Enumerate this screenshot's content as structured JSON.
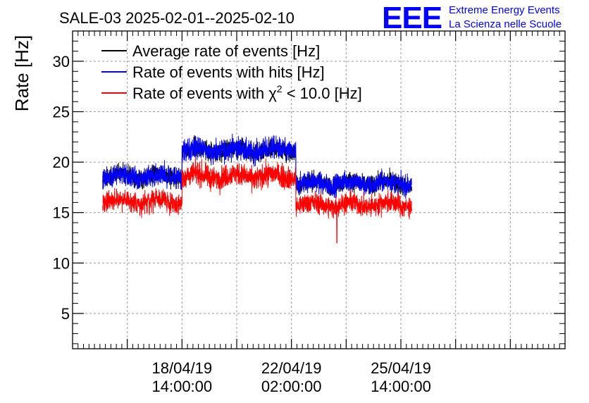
{
  "chart_data": {
    "type": "line",
    "title": "SALE-03 2025-02-01--2025-02-10",
    "ylabel": "Rate [Hz]",
    "xlabel": "",
    "ylim": [
      1.5,
      33
    ],
    "yticks": [
      5,
      10,
      15,
      20,
      25,
      30
    ],
    "xlim": [
      0,
      9
    ],
    "xticks": [
      {
        "x": 2.0,
        "date": "18/04/19",
        "time": "14:00:00"
      },
      {
        "x": 4.0,
        "date": "22/04/19",
        "time": "02:00:00"
      },
      {
        "x": 6.0,
        "date": "25/04/19",
        "time": "14:00:00"
      }
    ],
    "grid": true,
    "legend_position": "top-left",
    "x_range_data": [
      0.55,
      6.2
    ],
    "series": [
      {
        "name": "Average rate of events [Hz]",
        "color": "#000000",
        "segments": [
          {
            "x_start": 0.55,
            "x_end": 2.0,
            "mean": 18.6,
            "noise": 1.0
          },
          {
            "x_start": 2.0,
            "x_end": 4.08,
            "mean": 21.2,
            "noise": 1.0
          },
          {
            "x_start": 4.08,
            "x_end": 6.2,
            "mean": 17.9,
            "noise": 1.0
          }
        ]
      },
      {
        "name": "Rate of events with hits [Hz]",
        "color": "#0000ff",
        "segments": [
          {
            "x_start": 0.55,
            "x_end": 2.0,
            "mean": 18.6,
            "noise": 1.1
          },
          {
            "x_start": 2.0,
            "x_end": 4.08,
            "mean": 21.2,
            "noise": 1.2
          },
          {
            "x_start": 4.08,
            "x_end": 6.2,
            "mean": 17.9,
            "noise": 1.1
          }
        ]
      },
      {
        "name": "Rate of events with χ2 < 10.0 [Hz]",
        "color": "#ff0000",
        "segments": [
          {
            "x_start": 0.55,
            "x_end": 2.0,
            "mean": 16.1,
            "noise": 1.1
          },
          {
            "x_start": 2.0,
            "x_end": 4.08,
            "mean": 18.6,
            "noise": 1.2
          },
          {
            "x_start": 4.08,
            "x_end": 6.2,
            "mean": 15.8,
            "noise": 1.1
          }
        ],
        "dips": [
          {
            "x": 4.83,
            "value": 12.0
          }
        ]
      }
    ],
    "legend": {
      "entries": [
        {
          "label": "Average rate of events [Hz]",
          "color": "#000000"
        },
        {
          "label": "Rate of events with hits [Hz]",
          "color": "#0000ff"
        },
        {
          "label_prefix": "Rate of events with ",
          "chi": "χ",
          "sup": "2",
          "label_suffix": " < 10.0 [Hz]",
          "color": "#ff0000"
        }
      ]
    }
  },
  "logo": {
    "mark": "EEE",
    "line1": "Extreme Energy Events",
    "line2": "La Scienza nelle Scuole",
    "color": "#0000ff"
  }
}
